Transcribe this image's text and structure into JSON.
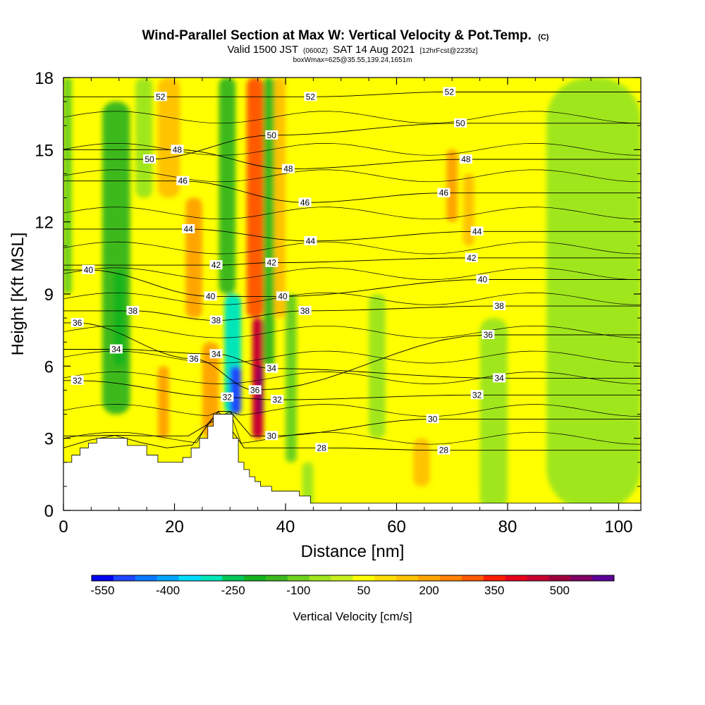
{
  "header": {
    "title_main": "Wind-Parallel Section at Max W: Vertical Velocity & Pot.Temp.",
    "title_mark": "(C)",
    "line2_a": "Valid 1500 JST",
    "line2_b": "(0600Z)",
    "line2_c": "SAT 14 Aug 2021",
    "line2_d": "[12hrFcst@2235z]",
    "line3": "boxWmax=625@35.55,139.24,1651m"
  },
  "chart_data": {
    "type": "heatmap",
    "title": "Wind-Parallel Section at Max W: Vertical Velocity & Pot.Temp.",
    "xlabel": "Distance [nm]",
    "ylabel": "Height [Kft MSL]",
    "xlim": [
      0,
      104
    ],
    "ylim": [
      0,
      18
    ],
    "x_ticks": [
      "0",
      "20",
      "40",
      "60",
      "80",
      "100"
    ],
    "y_ticks": [
      "0",
      "3",
      "6",
      "9",
      "12",
      "15",
      "18"
    ],
    "colorbar": {
      "label": "Vertical Velocity [cm/s]",
      "tick_labels": [
        "-550",
        "-400",
        "-250",
        "-100",
        "50",
        "200",
        "350",
        "500"
      ],
      "tick_values": [
        -550,
        -400,
        -250,
        -100,
        50,
        200,
        350,
        500
      ],
      "range": [
        -575,
        625
      ],
      "colors": [
        "#0000f0",
        "#1e46ff",
        "#0a78ff",
        "#00a5ff",
        "#00dcff",
        "#00e6b9",
        "#00c85a",
        "#14b41e",
        "#3cb91e",
        "#6ed21e",
        "#a0e61e",
        "#c8f01e",
        "#ffff00",
        "#ffdc00",
        "#ffc300",
        "#ffa500",
        "#ff8200",
        "#ff5a00",
        "#ff1e00",
        "#e6001e",
        "#c80032",
        "#a0003c",
        "#800064",
        "#5a0096"
      ]
    },
    "vertical_velocity_cells": [
      {
        "x": [
          0,
          1.5
        ],
        "y": [
          9,
          18
        ],
        "w": -80
      },
      {
        "x": [
          7,
          12
        ],
        "y": [
          4,
          17
        ],
        "w": -150
      },
      {
        "x": [
          9,
          11
        ],
        "y": [
          6,
          10
        ],
        "w": -200
      },
      {
        "x": [
          13,
          16
        ],
        "y": [
          13,
          18
        ],
        "w": -40
      },
      {
        "x": [
          17,
          19
        ],
        "y": [
          3,
          6
        ],
        "w": 180
      },
      {
        "x": [
          17,
          21
        ],
        "y": [
          13,
          18
        ],
        "w": 160
      },
      {
        "x": [
          22,
          25
        ],
        "y": [
          8,
          13
        ],
        "w": 200
      },
      {
        "x": [
          25,
          28
        ],
        "y": [
          3,
          7
        ],
        "w": 200
      },
      {
        "x": [
          28,
          31
        ],
        "y": [
          9,
          18
        ],
        "w": -140
      },
      {
        "x": [
          29,
          32
        ],
        "y": [
          4,
          9
        ],
        "w": -320
      },
      {
        "x": [
          30,
          32
        ],
        "y": [
          4,
          6
        ],
        "w": -500
      },
      {
        "x": [
          33,
          36
        ],
        "y": [
          8,
          18
        ],
        "w": 280
      },
      {
        "x": [
          34,
          36
        ],
        "y": [
          3,
          8
        ],
        "w": 450
      },
      {
        "x": [
          35,
          36
        ],
        "y": [
          4,
          6
        ],
        "w": 525
      },
      {
        "x": [
          36,
          38
        ],
        "y": [
          6,
          18
        ],
        "w": -160
      },
      {
        "x": [
          38,
          40
        ],
        "y": [
          8,
          18
        ],
        "w": 150
      },
      {
        "x": [
          40,
          42
        ],
        "y": [
          2,
          9
        ],
        "w": -120
      },
      {
        "x": [
          43,
          45
        ],
        "y": [
          0,
          2
        ],
        "w": -40
      },
      {
        "x": [
          55,
          58
        ],
        "y": [
          3,
          9
        ],
        "w": -40
      },
      {
        "x": [
          69,
          71
        ],
        "y": [
          12,
          15
        ],
        "w": 180
      },
      {
        "x": [
          72,
          74
        ],
        "y": [
          11,
          14
        ],
        "w": 140
      },
      {
        "x": [
          63,
          66
        ],
        "y": [
          1,
          3
        ],
        "w": 170
      },
      {
        "x": [
          75,
          80
        ],
        "y": [
          0,
          8
        ],
        "w": -40
      },
      {
        "x": [
          87,
          104
        ],
        "y": [
          0,
          18
        ],
        "w": -40
      },
      {
        "x": [
          95,
          104
        ],
        "y": [
          9,
          16
        ],
        "w": -40
      }
    ],
    "potential_temperature_contours": {
      "unit": "C",
      "labels": [
        {
          "value": "52",
          "x": 17.5,
          "y": 17.2
        },
        {
          "value": "52",
          "x": 44.5,
          "y": 17.2
        },
        {
          "value": "52",
          "x": 69.5,
          "y": 17.4
        },
        {
          "value": "50",
          "x": 15.5,
          "y": 14.6
        },
        {
          "value": "50",
          "x": 37.5,
          "y": 15.6
        },
        {
          "value": "50",
          "x": 71.5,
          "y": 16.1
        },
        {
          "value": "48",
          "x": 20.5,
          "y": 15.0
        },
        {
          "value": "48",
          "x": 40.5,
          "y": 14.2
        },
        {
          "value": "48",
          "x": 72.5,
          "y": 14.6
        },
        {
          "value": "46",
          "x": 21.5,
          "y": 13.7
        },
        {
          "value": "46",
          "x": 43.5,
          "y": 12.8
        },
        {
          "value": "46",
          "x": 68.5,
          "y": 13.2
        },
        {
          "value": "44",
          "x": 22.5,
          "y": 11.7
        },
        {
          "value": "44",
          "x": 44.5,
          "y": 11.2
        },
        {
          "value": "44",
          "x": 74.5,
          "y": 11.6
        },
        {
          "value": "42",
          "x": 27.5,
          "y": 10.2
        },
        {
          "value": "42",
          "x": 37.5,
          "y": 10.3
        },
        {
          "value": "42",
          "x": 73.5,
          "y": 10.5
        },
        {
          "value": "40",
          "x": 4.5,
          "y": 10.0
        },
        {
          "value": "40",
          "x": 26.5,
          "y": 8.9
        },
        {
          "value": "40",
          "x": 39.5,
          "y": 8.9
        },
        {
          "value": "40",
          "x": 75.5,
          "y": 9.6
        },
        {
          "value": "38",
          "x": 12.5,
          "y": 8.3
        },
        {
          "value": "38",
          "x": 27.5,
          "y": 7.9
        },
        {
          "value": "38",
          "x": 43.5,
          "y": 8.3
        },
        {
          "value": "38",
          "x": 78.5,
          "y": 8.5
        },
        {
          "value": "36",
          "x": 2.5,
          "y": 7.8
        },
        {
          "value": "36",
          "x": 23.5,
          "y": 6.3
        },
        {
          "value": "36",
          "x": 34.5,
          "y": 5.0
        },
        {
          "value": "36",
          "x": 76.5,
          "y": 7.3
        },
        {
          "value": "34",
          "x": 9.5,
          "y": 6.7
        },
        {
          "value": "34",
          "x": 27.5,
          "y": 6.5
        },
        {
          "value": "34",
          "x": 37.5,
          "y": 5.9
        },
        {
          "value": "34",
          "x": 78.5,
          "y": 5.5
        },
        {
          "value": "32",
          "x": 2.5,
          "y": 5.4
        },
        {
          "value": "32",
          "x": 29.5,
          "y": 4.7
        },
        {
          "value": "32",
          "x": 38.5,
          "y": 4.6
        },
        {
          "value": "32",
          "x": 74.5,
          "y": 4.8
        },
        {
          "value": "30",
          "x": 37.5,
          "y": 3.1
        },
        {
          "value": "30",
          "x": 66.5,
          "y": 3.8
        },
        {
          "value": "28",
          "x": 46.5,
          "y": 2.6
        },
        {
          "value": "28",
          "x": 68.5,
          "y": 2.5
        }
      ]
    },
    "terrain": [
      [
        0,
        2.0
      ],
      [
        1.5,
        2.0
      ],
      [
        1.5,
        2.3
      ],
      [
        3,
        2.3
      ],
      [
        3,
        2.6
      ],
      [
        4.5,
        2.6
      ],
      [
        4.5,
        2.8
      ],
      [
        6,
        2.8
      ],
      [
        6,
        3.0
      ],
      [
        11.5,
        3.0
      ],
      [
        11.5,
        2.7
      ],
      [
        15,
        2.7
      ],
      [
        15,
        2.3
      ],
      [
        17,
        2.3
      ],
      [
        17,
        2.0
      ],
      [
        21.5,
        2.0
      ],
      [
        21.5,
        2.2
      ],
      [
        23,
        2.2
      ],
      [
        23,
        2.6
      ],
      [
        24.5,
        2.6
      ],
      [
        24.5,
        3.0
      ],
      [
        26,
        3.0
      ],
      [
        26,
        3.5
      ],
      [
        27,
        3.5
      ],
      [
        27,
        4.0
      ],
      [
        30.5,
        4.0
      ],
      [
        30.5,
        3.0
      ],
      [
        31.5,
        3.0
      ],
      [
        31.5,
        2.0
      ],
      [
        32.5,
        2.0
      ],
      [
        32.5,
        1.7
      ],
      [
        33.5,
        1.7
      ],
      [
        33.5,
        1.4
      ],
      [
        34.5,
        1.4
      ],
      [
        34.5,
        1.2
      ],
      [
        35.5,
        1.2
      ],
      [
        35.5,
        1.0
      ],
      [
        37.5,
        1.0
      ],
      [
        37.5,
        0.8
      ],
      [
        42.5,
        0.8
      ],
      [
        42.5,
        0.6
      ],
      [
        44.5,
        0.6
      ],
      [
        44.5,
        0.3
      ],
      [
        47.5,
        0.3
      ],
      [
        104,
        0.3
      ]
    ]
  }
}
